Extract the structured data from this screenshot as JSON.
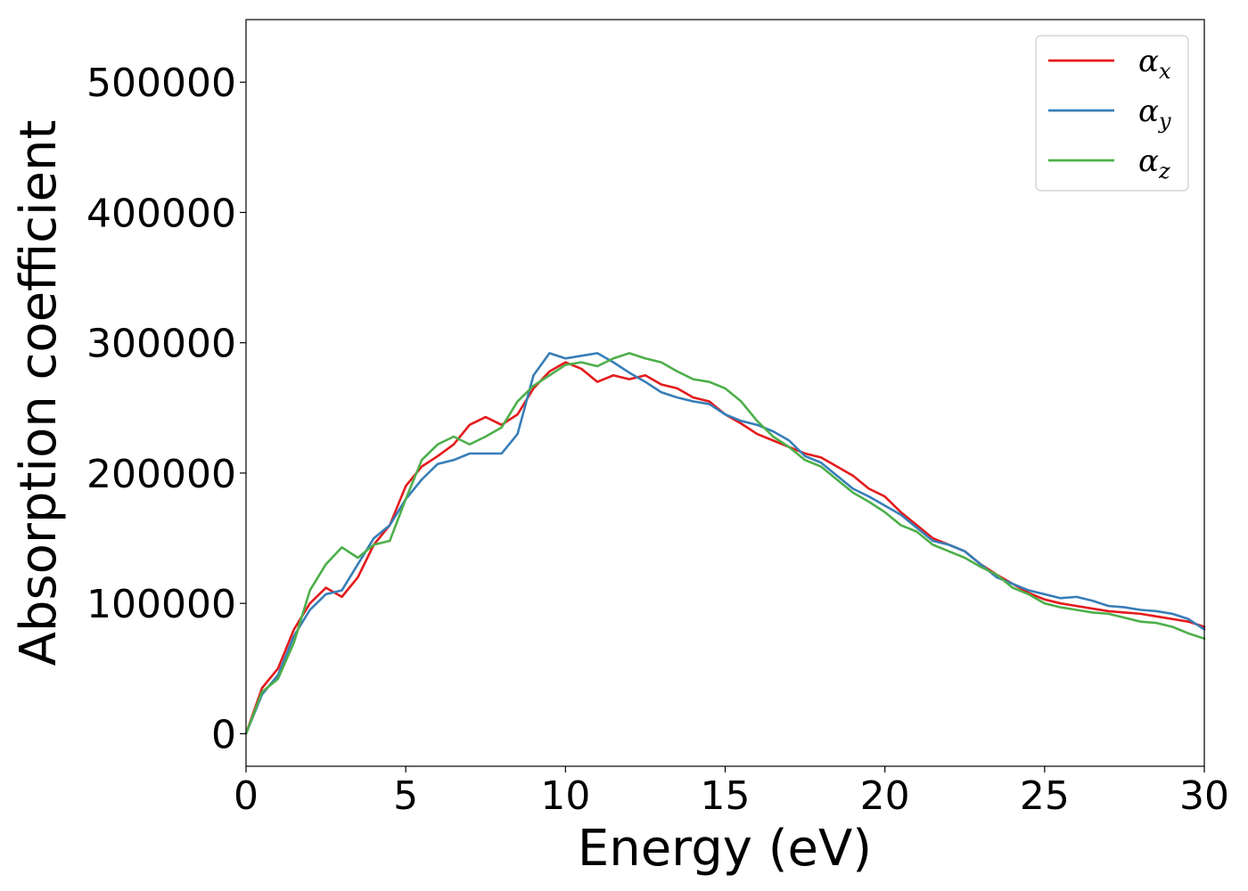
{
  "chart_data": {
    "type": "line",
    "title": "",
    "xlabel": "Energy (eV)",
    "ylabel": "Absorption coefficient",
    "xlim": [
      0,
      30
    ],
    "ylim": [
      -25000,
      548000
    ],
    "xticks": [
      0,
      5,
      10,
      15,
      20,
      25,
      30
    ],
    "xtick_labels": [
      "0",
      "5",
      "10",
      "15",
      "20",
      "25",
      "30"
    ],
    "yticks": [
      0,
      100000,
      200000,
      300000,
      400000,
      500000
    ],
    "ytick_labels": [
      "0",
      "100000",
      "200000",
      "300000",
      "400000",
      "500000"
    ],
    "grid": false,
    "legend_position": "top-right",
    "x": [
      0,
      0.5,
      1,
      1.5,
      2,
      2.5,
      3,
      3.5,
      4,
      4.5,
      5,
      5.5,
      6,
      6.5,
      7,
      7.5,
      8,
      8.5,
      9,
      9.5,
      10,
      10.5,
      11,
      11.5,
      12,
      12.5,
      13,
      13.5,
      14,
      14.5,
      15,
      15.5,
      16,
      16.5,
      17,
      17.5,
      18,
      18.5,
      19,
      19.5,
      20,
      20.5,
      21,
      21.5,
      22,
      22.5,
      23,
      23.5,
      24,
      24.5,
      25,
      25.5,
      26,
      26.5,
      27,
      27.5,
      28,
      28.5,
      29,
      29.5,
      30
    ],
    "series": [
      {
        "name": "α",
        "subscript": "x",
        "color": "#e41a1c",
        "values": [
          0,
          35000,
          50000,
          80000,
          100000,
          112000,
          105000,
          120000,
          145000,
          160000,
          190000,
          205000,
          213000,
          222000,
          237000,
          243000,
          237000,
          245000,
          265000,
          278000,
          285000,
          280000,
          270000,
          275000,
          272000,
          275000,
          268000,
          265000,
          258000,
          255000,
          245000,
          238000,
          230000,
          225000,
          220000,
          215000,
          212000,
          205000,
          198000,
          188000,
          182000,
          170000,
          160000,
          150000,
          145000,
          140000,
          130000,
          122000,
          115000,
          108000,
          103000,
          100000,
          98000,
          96000,
          94000,
          93000,
          92000,
          90000,
          88000,
          86000,
          82000
        ]
      },
      {
        "name": "α",
        "subscript": "y",
        "color": "#377eb8",
        "values": [
          0,
          30000,
          45000,
          75000,
          95000,
          107000,
          110000,
          130000,
          150000,
          160000,
          180000,
          195000,
          207000,
          210000,
          215000,
          215000,
          215000,
          230000,
          275000,
          292000,
          288000,
          290000,
          292000,
          285000,
          277000,
          270000,
          262000,
          258000,
          255000,
          253000,
          245000,
          240000,
          237000,
          232000,
          225000,
          213000,
          208000,
          198000,
          188000,
          182000,
          175000,
          168000,
          158000,
          148000,
          145000,
          140000,
          130000,
          120000,
          115000,
          110000,
          107000,
          104000,
          105000,
          102000,
          98000,
          97000,
          95000,
          94000,
          92000,
          88000,
          80000
        ]
      },
      {
        "name": "α",
        "subscript": "z",
        "color": "#4daf4a",
        "values": [
          0,
          32000,
          42000,
          70000,
          110000,
          130000,
          143000,
          135000,
          145000,
          148000,
          180000,
          210000,
          222000,
          228000,
          222000,
          228000,
          235000,
          255000,
          267000,
          275000,
          283000,
          285000,
          282000,
          288000,
          292000,
          288000,
          285000,
          278000,
          272000,
          270000,
          265000,
          255000,
          240000,
          228000,
          220000,
          210000,
          205000,
          195000,
          185000,
          178000,
          170000,
          160000,
          155000,
          145000,
          140000,
          135000,
          128000,
          122000,
          112000,
          107000,
          100000,
          97000,
          95000,
          93000,
          92000,
          89000,
          86000,
          85000,
          82000,
          77000,
          73000
        ]
      }
    ]
  }
}
